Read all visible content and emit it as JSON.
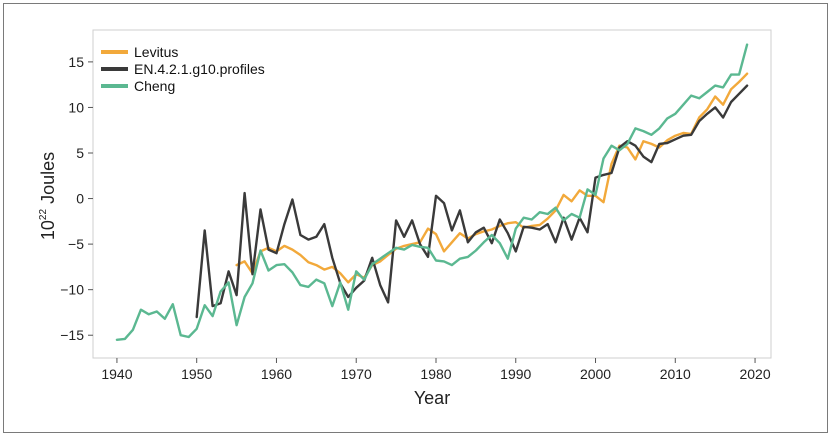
{
  "chart_data": {
    "type": "line",
    "xlabel": "Year",
    "ylabel_base": "10",
    "ylabel_exp": "22",
    "ylabel_unit": " Joules",
    "xlim": [
      1937,
      2022
    ],
    "ylim": [
      -17.5,
      18.5
    ],
    "x_ticks": [
      1940,
      1950,
      1960,
      1970,
      1980,
      1990,
      2000,
      2010,
      2020
    ],
    "y_ticks": [
      -15,
      -10,
      -5,
      0,
      5,
      10,
      15
    ],
    "legend_position": "top-left",
    "series": [
      {
        "name": "Levitus",
        "color": "#f2a93b",
        "x": [
          1955,
          1956,
          1957,
          1958,
          1959,
          1960,
          1961,
          1962,
          1963,
          1964,
          1965,
          1966,
          1967,
          1968,
          1969,
          1970,
          1971,
          1972,
          1973,
          1974,
          1975,
          1976,
          1977,
          1978,
          1979,
          1980,
          1981,
          1982,
          1983,
          1984,
          1985,
          1986,
          1987,
          1988,
          1989,
          1990,
          1991,
          1992,
          1993,
          1994,
          1995,
          1996,
          1997,
          1998,
          1999,
          2000,
          2001,
          2002,
          2003,
          2004,
          2005,
          2006,
          2007,
          2008,
          2009,
          2010,
          2011,
          2012,
          2013,
          2014,
          2015,
          2016,
          2017,
          2018,
          2019
        ],
        "values": [
          -7.3,
          -6.9,
          -8.2,
          -5.8,
          -5.4,
          -5.8,
          -5.2,
          -5.6,
          -6.2,
          -7.0,
          -7.3,
          -7.8,
          -7.5,
          -8.2,
          -9.2,
          -8.3,
          -8.7,
          -7.3,
          -6.9,
          -6.2,
          -5.5,
          -5.2,
          -5.0,
          -4.8,
          -3.3,
          -3.9,
          -5.8,
          -4.8,
          -3.8,
          -4.4,
          -3.9,
          -3.6,
          -3.4,
          -3.0,
          -2.7,
          -2.6,
          -3.2,
          -3.0,
          -2.9,
          -2.2,
          -1.3,
          0.4,
          -0.3,
          0.9,
          0.3,
          0.3,
          -0.4,
          3.8,
          5.8,
          5.6,
          4.3,
          6.3,
          6.0,
          5.6,
          6.4,
          6.9,
          7.2,
          7.1,
          8.9,
          9.8,
          11.2,
          10.3,
          12.0,
          12.8,
          13.7
        ]
      },
      {
        "name": "EN.4.2.1.g10.profiles",
        "color": "#3a3a3a",
        "x": [
          1950,
          1951,
          1952,
          1953,
          1954,
          1955,
          1956,
          1957,
          1958,
          1959,
          1960,
          1961,
          1962,
          1963,
          1964,
          1965,
          1966,
          1967,
          1968,
          1969,
          1970,
          1971,
          1972,
          1973,
          1974,
          1975,
          1976,
          1977,
          1978,
          1979,
          1980,
          1981,
          1982,
          1983,
          1984,
          1985,
          1986,
          1987,
          1988,
          1989,
          1990,
          1991,
          1992,
          1993,
          1994,
          1995,
          1996,
          1997,
          1998,
          1999,
          2000,
          2001,
          2002,
          2003,
          2004,
          2005,
          2006,
          2007,
          2008,
          2009,
          2010,
          2011,
          2012,
          2013,
          2014,
          2015,
          2016,
          2017,
          2018,
          2019
        ],
        "values": [
          -13.0,
          -3.5,
          -11.8,
          -11.5,
          -8.0,
          -10.6,
          0.6,
          -8.3,
          -1.2,
          -5.6,
          -6.0,
          -2.8,
          -0.1,
          -4.0,
          -4.5,
          -4.2,
          -2.8,
          -6.5,
          -9.3,
          -10.8,
          -9.8,
          -9.0,
          -6.5,
          -9.5,
          -11.4,
          -2.4,
          -4.2,
          -2.4,
          -5.0,
          -6.4,
          0.3,
          -0.5,
          -3.5,
          -1.3,
          -4.8,
          -3.7,
          -3.2,
          -4.9,
          -2.3,
          -3.8,
          -5.8,
          -3.1,
          -3.2,
          -3.4,
          -2.8,
          -4.8,
          -2.1,
          -4.5,
          -2.1,
          -3.7,
          2.3,
          2.6,
          2.8,
          5.6,
          6.3,
          5.8,
          4.6,
          4.0,
          6.0,
          6.1,
          6.5,
          6.9,
          7.0,
          8.5,
          9.3,
          10.0,
          8.9,
          10.6,
          11.5,
          12.4
        ]
      },
      {
        "name": "Cheng",
        "color": "#5bb891",
        "x": [
          1940,
          1941,
          1942,
          1943,
          1944,
          1945,
          1946,
          1947,
          1948,
          1949,
          1950,
          1951,
          1952,
          1953,
          1954,
          1955,
          1956,
          1957,
          1958,
          1959,
          1960,
          1961,
          1962,
          1963,
          1964,
          1965,
          1966,
          1967,
          1968,
          1969,
          1970,
          1971,
          1972,
          1973,
          1974,
          1975,
          1976,
          1977,
          1978,
          1979,
          1980,
          1981,
          1982,
          1983,
          1984,
          1985,
          1986,
          1987,
          1988,
          1989,
          1990,
          1991,
          1992,
          1993,
          1994,
          1995,
          1996,
          1997,
          1998,
          1999,
          2000,
          2001,
          2002,
          2003,
          2004,
          2005,
          2006,
          2007,
          2008,
          2009,
          2010,
          2011,
          2012,
          2013,
          2014,
          2015,
          2016,
          2017,
          2018,
          2019
        ],
        "values": [
          -15.5,
          -15.4,
          -14.4,
          -12.2,
          -12.7,
          -12.4,
          -13.2,
          -11.6,
          -15.0,
          -15.2,
          -14.3,
          -11.7,
          -12.9,
          -10.2,
          -9.2,
          -13.9,
          -10.8,
          -9.3,
          -5.7,
          -7.9,
          -7.3,
          -7.2,
          -8.1,
          -9.5,
          -9.7,
          -8.9,
          -9.3,
          -11.8,
          -9.2,
          -12.2,
          -8.0,
          -8.9,
          -7.2,
          -6.6,
          -6.0,
          -5.4,
          -5.6,
          -5.1,
          -5.3,
          -5.4,
          -6.8,
          -6.9,
          -7.3,
          -6.6,
          -6.4,
          -5.7,
          -4.8,
          -4.0,
          -4.9,
          -6.6,
          -3.3,
          -2.1,
          -2.3,
          -1.5,
          -1.7,
          -1.0,
          -2.4,
          -1.7,
          -2.1,
          1.0,
          0.4,
          4.4,
          5.8,
          5.3,
          6.0,
          7.7,
          7.4,
          7.0,
          7.7,
          8.8,
          9.3,
          10.3,
          11.3,
          11.0,
          11.7,
          12.4,
          12.2,
          13.6,
          13.6,
          16.9
        ]
      }
    ]
  }
}
